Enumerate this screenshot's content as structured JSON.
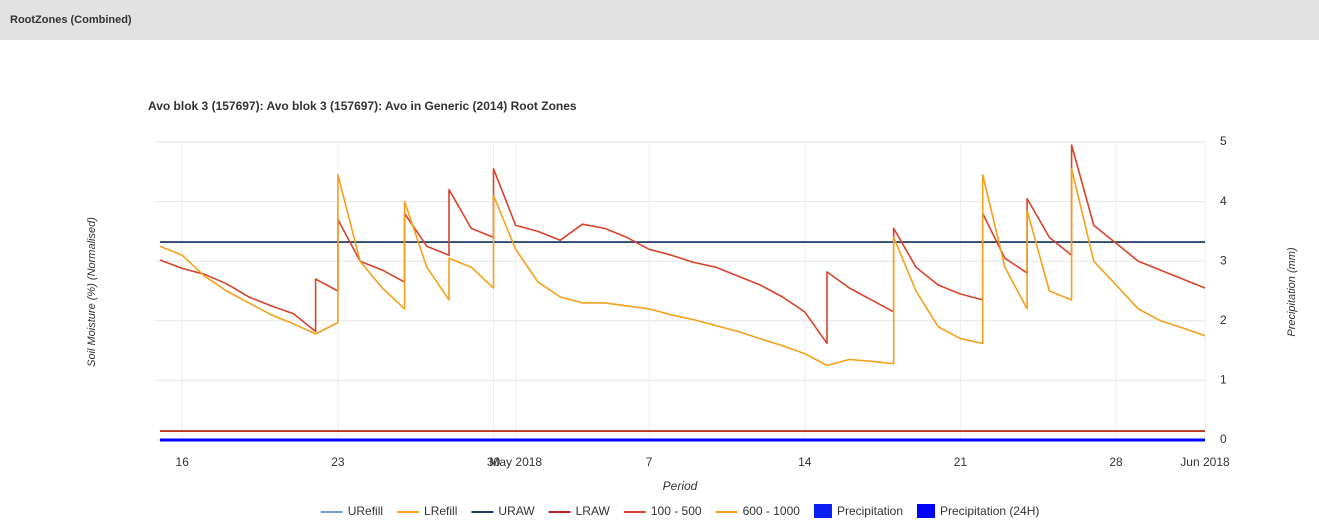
{
  "header": "RootZones (Combined)",
  "chart_data": {
    "type": "line",
    "title": "Avo blok 3 (157697): Avo blok 3 (157697): Avo in Generic (2014) Root Zones",
    "xlabel": "Period",
    "ylabel": "Soil Moisture (%) (Normalised)",
    "y2label": "Precipitation (mm)",
    "xlim": [
      "2018-04-15",
      "2018-06-01"
    ],
    "xticks": [
      {
        "value": "2018-04-16",
        "label": "16"
      },
      {
        "value": "2018-04-23",
        "label": "23"
      },
      {
        "value": "2018-04-30",
        "label": "30"
      },
      {
        "value": "2018-05-01",
        "label": "May 2018"
      },
      {
        "value": "2018-05-07",
        "label": "7"
      },
      {
        "value": "2018-05-14",
        "label": "14"
      },
      {
        "value": "2018-05-21",
        "label": "21"
      },
      {
        "value": "2018-05-28",
        "label": "28"
      },
      {
        "value": "2018-06-01",
        "label": "Jun 2018"
      }
    ],
    "ylim": [
      0,
      5
    ],
    "yticks": [
      0,
      1,
      2,
      3,
      4,
      5
    ],
    "grid": true,
    "legend": "bottom",
    "series": [
      {
        "name": "URefill",
        "color": "#7a9cc6",
        "x": [
          "2018-04-15",
          "2018-06-01"
        ],
        "values": [
          3.32,
          3.32
        ]
      },
      {
        "name": "LRefill",
        "color": "#f5a623",
        "x": [
          "2018-04-15",
          "2018-06-01"
        ],
        "values": [
          0.15,
          0.15
        ]
      },
      {
        "name": "URAW",
        "color": "#1f3a5f",
        "x": [
          "2018-04-15",
          "2018-06-01"
        ],
        "values": [
          3.32,
          3.32
        ]
      },
      {
        "name": "LRAW",
        "color": "#b22222",
        "x": [
          "2018-04-15",
          "2018-06-01"
        ],
        "values": [
          0.15,
          0.15
        ]
      },
      {
        "name": "100 - 500",
        "color": "#d9432b",
        "x": [
          "2018-04-15",
          "2018-04-16",
          "2018-04-17",
          "2018-04-18",
          "2018-04-19",
          "2018-04-20",
          "2018-04-21",
          "2018-04-22",
          "2018-04-22",
          "2018-04-23",
          "2018-04-23",
          "2018-04-24",
          "2018-04-25",
          "2018-04-26",
          "2018-04-26",
          "2018-04-27",
          "2018-04-28",
          "2018-04-28",
          "2018-04-29",
          "2018-04-30",
          "2018-04-30",
          "2018-05-01",
          "2018-05-02",
          "2018-05-03",
          "2018-05-04",
          "2018-05-05",
          "2018-05-06",
          "2018-05-07",
          "2018-05-08",
          "2018-05-09",
          "2018-05-10",
          "2018-05-11",
          "2018-05-12",
          "2018-05-13",
          "2018-05-14",
          "2018-05-15",
          "2018-05-15",
          "2018-05-16",
          "2018-05-17",
          "2018-05-18",
          "2018-05-18",
          "2018-05-19",
          "2018-05-20",
          "2018-05-21",
          "2018-05-22",
          "2018-05-22",
          "2018-05-23",
          "2018-05-24",
          "2018-05-24",
          "2018-05-25",
          "2018-05-26",
          "2018-05-26",
          "2018-05-27",
          "2018-05-28",
          "2018-05-29",
          "2018-05-30",
          "2018-05-31",
          "2018-06-01"
        ],
        "values": [
          3.02,
          2.88,
          2.78,
          2.62,
          2.4,
          2.25,
          2.12,
          1.82,
          2.7,
          2.5,
          3.7,
          3.0,
          2.85,
          2.65,
          3.8,
          3.25,
          3.1,
          4.2,
          3.55,
          3.4,
          4.55,
          3.6,
          3.5,
          3.35,
          3.62,
          3.55,
          3.4,
          3.2,
          3.1,
          2.98,
          2.9,
          2.75,
          2.6,
          2.4,
          2.15,
          1.62,
          2.82,
          2.55,
          2.35,
          2.15,
          3.55,
          2.9,
          2.6,
          2.45,
          2.35,
          3.8,
          3.05,
          2.8,
          4.05,
          3.4,
          3.1,
          4.95,
          3.6,
          3.3,
          3.0,
          2.85,
          2.7,
          2.55
        ]
      },
      {
        "name": "600 - 1000",
        "color": "#f5a01a",
        "x": [
          "2018-04-15",
          "2018-04-16",
          "2018-04-17",
          "2018-04-18",
          "2018-04-19",
          "2018-04-20",
          "2018-04-21",
          "2018-04-22",
          "2018-04-23",
          "2018-04-23",
          "2018-04-24",
          "2018-04-25",
          "2018-04-26",
          "2018-04-26",
          "2018-04-27",
          "2018-04-28",
          "2018-04-28",
          "2018-04-29",
          "2018-04-30",
          "2018-04-30",
          "2018-05-01",
          "2018-05-02",
          "2018-05-03",
          "2018-05-04",
          "2018-05-05",
          "2018-05-06",
          "2018-05-07",
          "2018-05-08",
          "2018-05-09",
          "2018-05-10",
          "2018-05-11",
          "2018-05-12",
          "2018-05-13",
          "2018-05-14",
          "2018-05-15",
          "2018-05-16",
          "2018-05-17",
          "2018-05-18",
          "2018-05-18",
          "2018-05-19",
          "2018-05-20",
          "2018-05-21",
          "2018-05-22",
          "2018-05-22",
          "2018-05-23",
          "2018-05-24",
          "2018-05-24",
          "2018-05-25",
          "2018-05-26",
          "2018-05-26",
          "2018-05-27",
          "2018-05-28",
          "2018-05-29",
          "2018-05-30",
          "2018-05-31",
          "2018-06-01"
        ],
        "values": [
          3.25,
          3.1,
          2.75,
          2.5,
          2.3,
          2.1,
          1.95,
          1.78,
          1.97,
          4.45,
          3.0,
          2.55,
          2.2,
          4.0,
          2.9,
          2.35,
          3.05,
          2.9,
          2.55,
          4.1,
          3.2,
          2.65,
          2.4,
          2.3,
          2.3,
          2.25,
          2.2,
          2.1,
          2.02,
          1.92,
          1.82,
          1.7,
          1.58,
          1.45,
          1.25,
          1.35,
          1.32,
          1.28,
          3.4,
          2.5,
          1.9,
          1.7,
          1.62,
          4.45,
          2.9,
          2.2,
          3.85,
          2.5,
          2.35,
          4.55,
          3.0,
          2.6,
          2.2,
          2.0,
          1.88,
          1.75
        ]
      },
      {
        "name": "Precipitation",
        "color": "#0a1ef0",
        "legend_symbol": "square",
        "x": [
          "2018-04-15",
          "2018-06-01"
        ],
        "values": [
          0,
          0
        ]
      },
      {
        "name": "Precipitation (24H)",
        "color": "#0000ff",
        "legend_symbol": "square",
        "x": [
          "2018-04-15",
          "2018-06-01"
        ],
        "values": [
          0,
          0
        ]
      }
    ]
  }
}
